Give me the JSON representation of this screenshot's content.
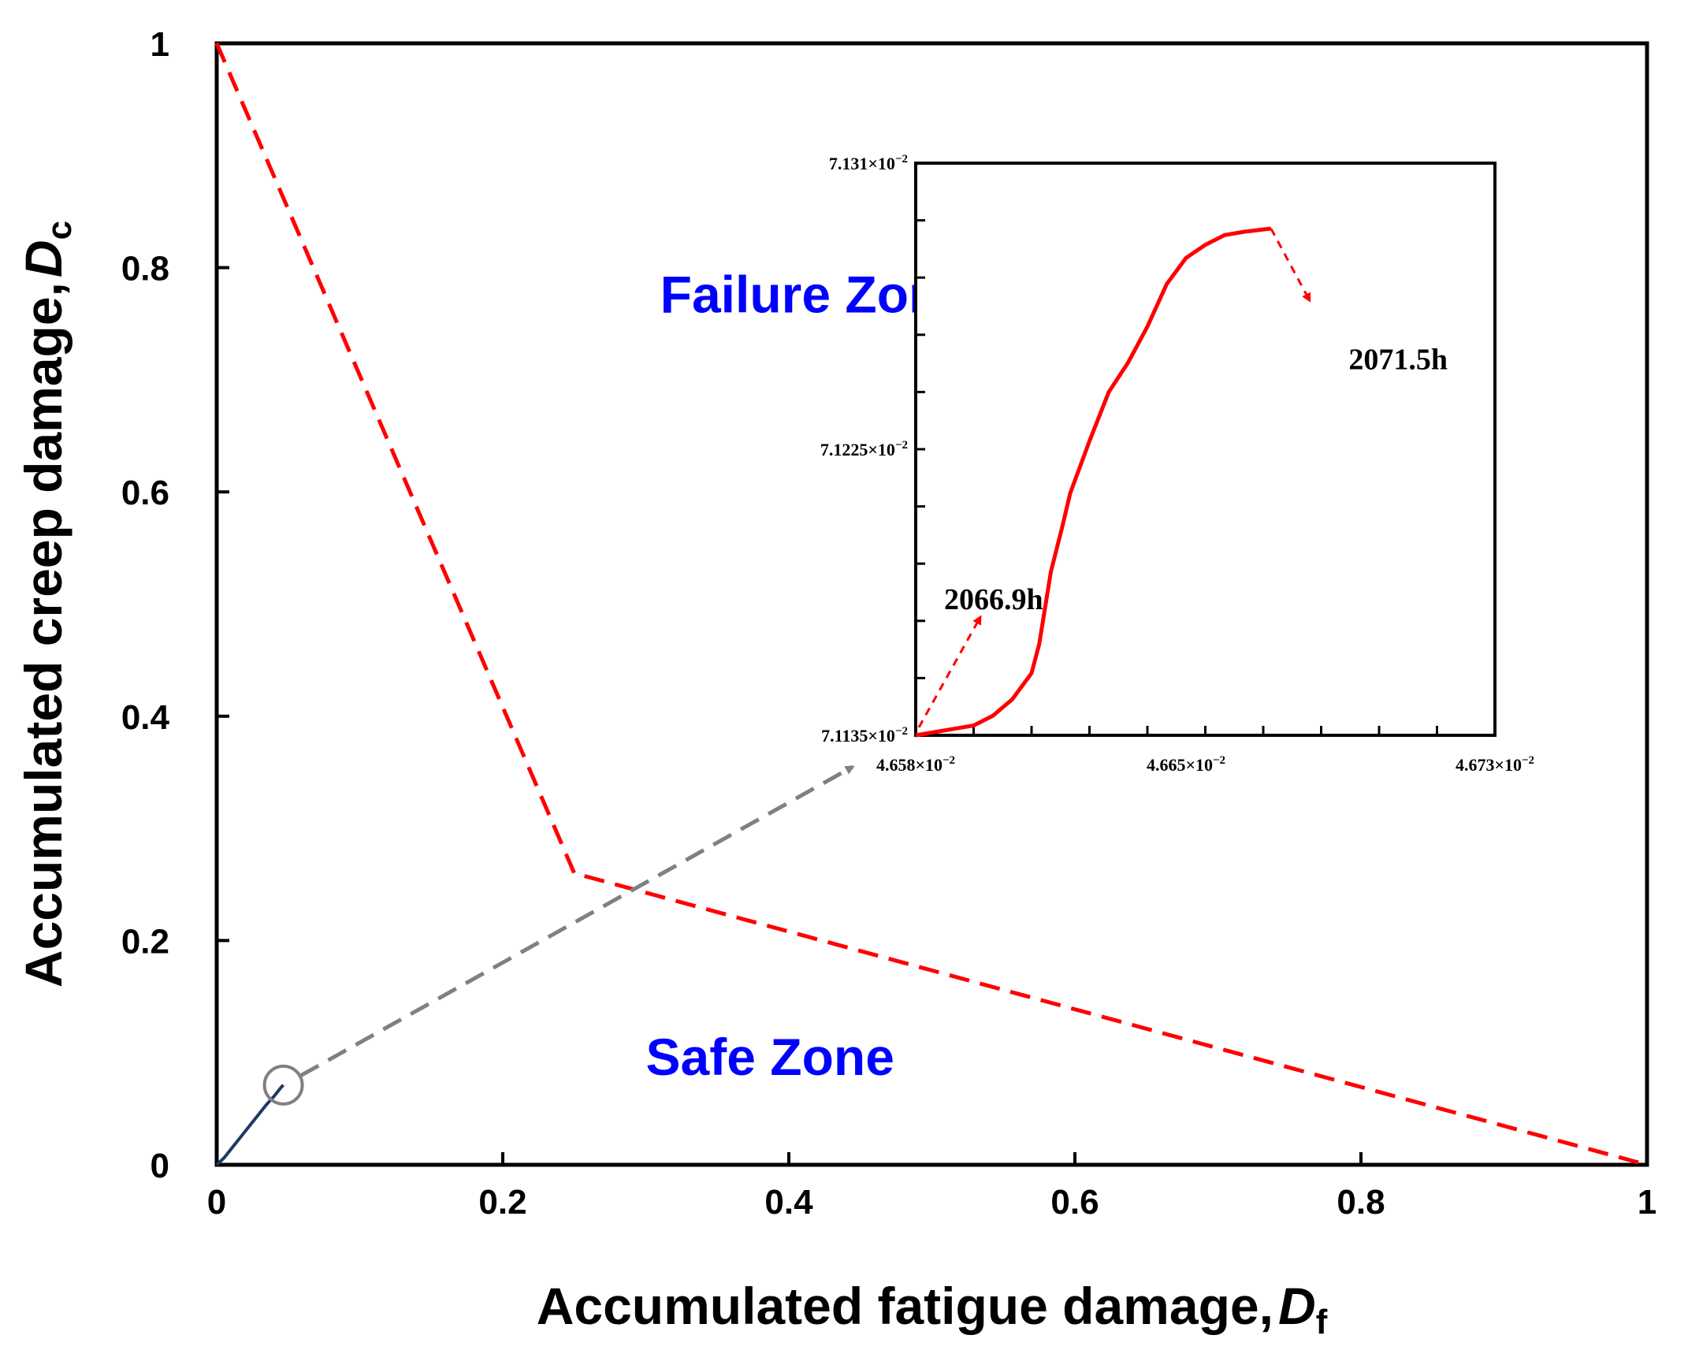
{
  "chart_data": [
    {
      "type": "line",
      "title": "",
      "xlabel": "Accumulated fatigue damage,",
      "xlabel_symbol": "D",
      "xlabel_sub": "f",
      "ylabel": "Accumulated creep damage,",
      "ylabel_symbol": "D",
      "ylabel_sub": "c",
      "xlim": [
        0,
        1
      ],
      "ylim": [
        0,
        1
      ],
      "x_ticks": [
        "0",
        "0.2",
        "0.4",
        "0.6",
        "0.8",
        "1"
      ],
      "y_ticks": [
        "0",
        "0.2",
        "0.4",
        "0.6",
        "0.8",
        "1"
      ],
      "grid": false,
      "series": [
        {
          "style": "dashed",
          "color": "#ff0000",
          "x": [
            0,
            0.25,
            1
          ],
          "y": [
            1,
            0.26,
            0
          ]
        },
        {
          "style": "solid",
          "color": "#1f3864",
          "x": [
            0,
            0.005,
            0.01,
            0.015,
            0.02,
            0.025,
            0.03,
            0.035,
            0.04,
            0.045,
            0.0466
          ],
          "y": [
            0,
            0.006,
            0.014,
            0.022,
            0.03,
            0.038,
            0.046,
            0.054,
            0.061,
            0.069,
            0.0711
          ]
        }
      ],
      "annotations": [
        {
          "text": "Failure Zone",
          "color": "#0000ff",
          "x": 0.31,
          "y": 0.76
        },
        {
          "text": "Safe Zone",
          "color": "#0000ff",
          "x": 0.3,
          "y": 0.08
        }
      ],
      "zoom_marker": {
        "x": 0.0466,
        "y": 0.0711,
        "color": "#808080"
      }
    },
    {
      "type": "line",
      "title": "",
      "xlim": [
        0.04658,
        0.04673
      ],
      "ylim": [
        0.071135,
        0.07131
      ],
      "x_tick_values": [
        0.04658,
        0.04665,
        0.04673
      ],
      "x_ticks": [
        "4.658×10",
        "4.665×10",
        "4.673×10"
      ],
      "y_tick_values": [
        0.071135,
        0.0712225,
        0.07131
      ],
      "y_ticks": [
        "7.1135×10",
        "7.1225×10",
        "7.131×10"
      ],
      "tick_exponent": "−2",
      "grid": false,
      "series": [
        {
          "style": "solid",
          "color": "#ff0000",
          "x": [
            0.04658,
            0.046585,
            0.04659,
            0.046595,
            0.0466,
            0.046605,
            0.04661,
            0.046612,
            0.046615,
            0.046618,
            0.04662,
            0.046625,
            0.04663,
            0.046635,
            0.04664,
            0.046645,
            0.04665,
            0.046655,
            0.04666,
            0.046665,
            0.046672
          ],
          "y": [
            0.071135,
            0.071136,
            0.071137,
            0.071138,
            0.071141,
            0.071146,
            0.071154,
            0.071163,
            0.071185,
            0.071199,
            0.071209,
            0.071225,
            0.07124,
            0.071249,
            0.07126,
            0.071273,
            0.071281,
            0.071285,
            0.071288,
            0.071289,
            0.07129
          ]
        },
        {
          "style": "dashed",
          "color": "#ff0000",
          "x": [
            0.046672,
            0.046682
          ],
          "y": [
            0.07129,
            0.071268
          ]
        }
      ],
      "annotations": [
        {
          "text": "2066.9h",
          "anchor": "start"
        },
        {
          "text": "2071.5h",
          "anchor": "end"
        }
      ]
    }
  ]
}
